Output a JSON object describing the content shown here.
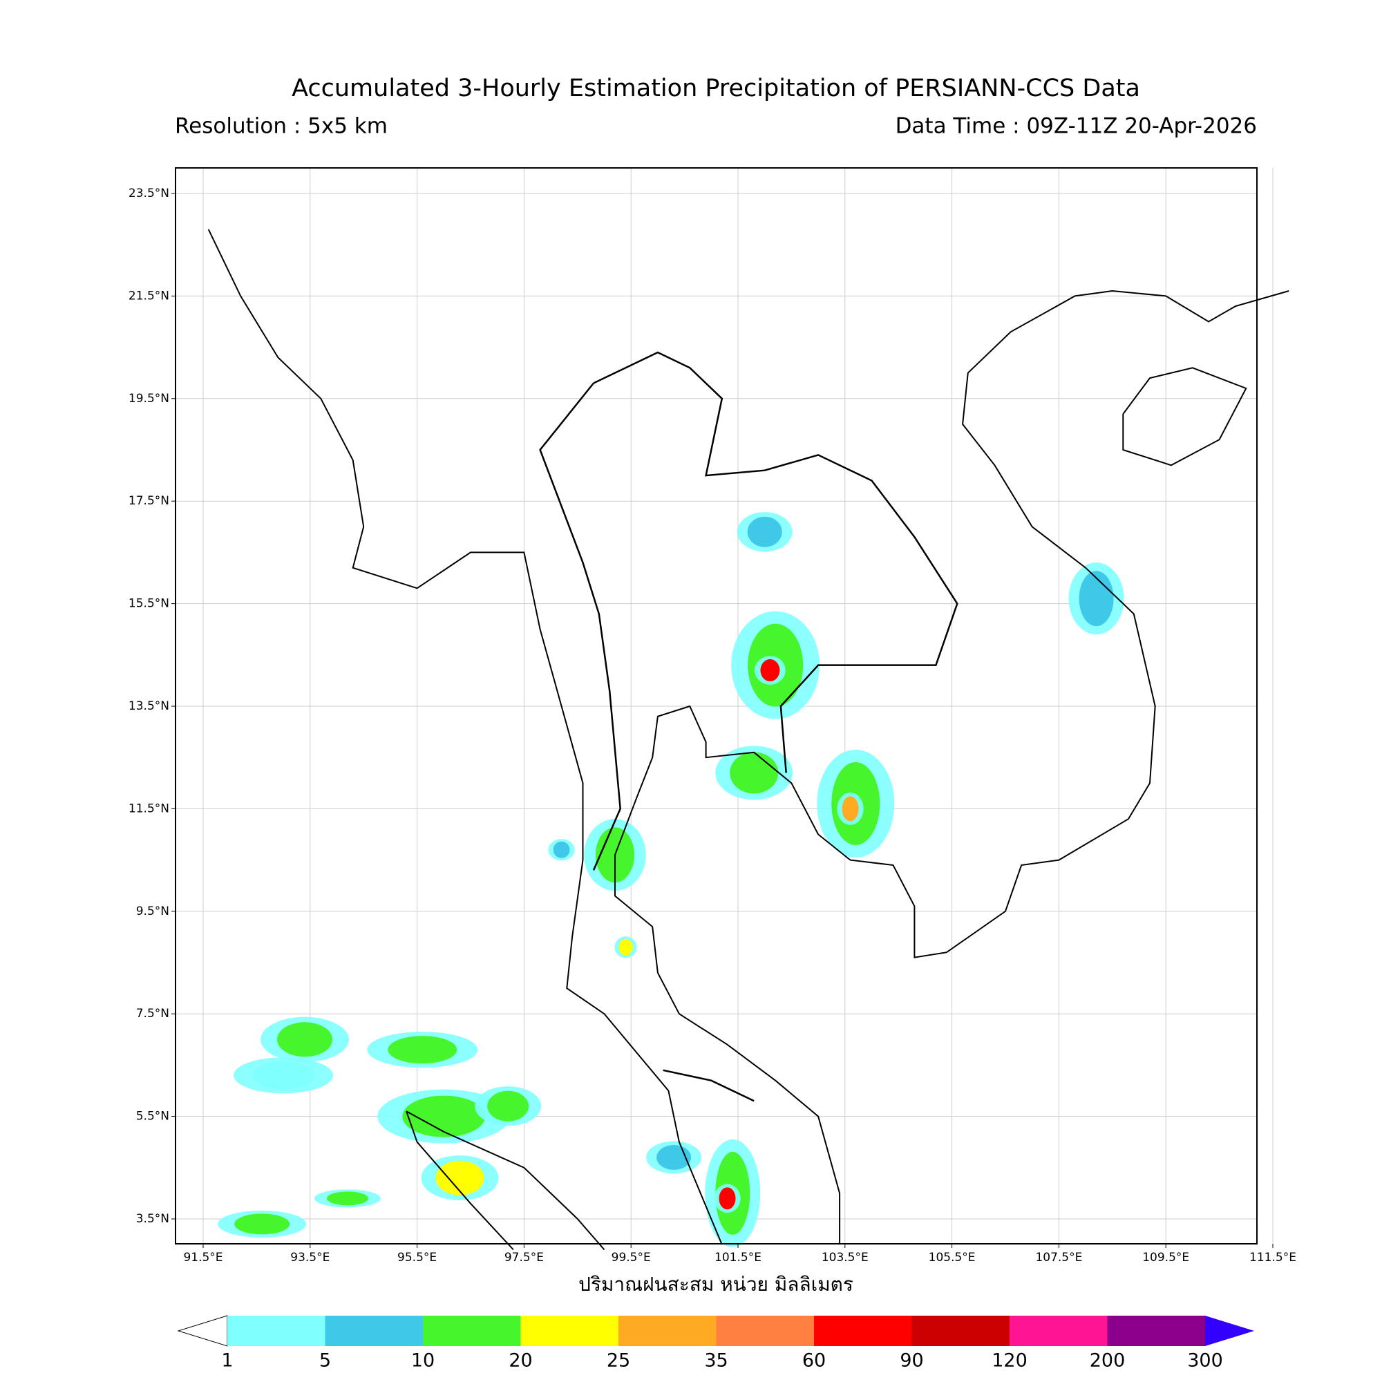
{
  "header": {
    "title": "Accumulated 3-Hourly Estimation Precipitation of PERSIANN-CCS Data",
    "resolution": "Resolution : 5x5 km",
    "data_time": "Data Time : 09Z-11Z 20-Apr-2026"
  },
  "map": {
    "lon_ticks": [
      "91.5°E",
      "93.5°E",
      "95.5°E",
      "97.5°E",
      "99.5°E",
      "101.5°E",
      "103.5°E",
      "105.5°E",
      "107.5°E",
      "109.5°E",
      "111.5°E"
    ],
    "lat_ticks": [
      "23.5°N",
      "21.5°N",
      "19.5°N",
      "17.5°N",
      "15.5°N",
      "13.5°N",
      "11.5°N",
      "9.5°N",
      "7.5°N",
      "5.5°N",
      "3.5°N"
    ],
    "xlabel": "ปริมาณฝนสะสม หน่วย มิลลิเมตร"
  },
  "colorbar": {
    "levels": [
      1,
      5,
      10,
      20,
      25,
      35,
      60,
      90,
      120,
      200,
      300
    ],
    "colors": [
      "#80ffff",
      "#40c8e8",
      "#46f52c",
      "#ffff00",
      "#ffaa22",
      "#ff8040",
      "#ff0000",
      "#cc0000",
      "#ff1493",
      "#8b008b"
    ],
    "under_color": "#ffffff",
    "over_color": "#3300ff"
  }
}
